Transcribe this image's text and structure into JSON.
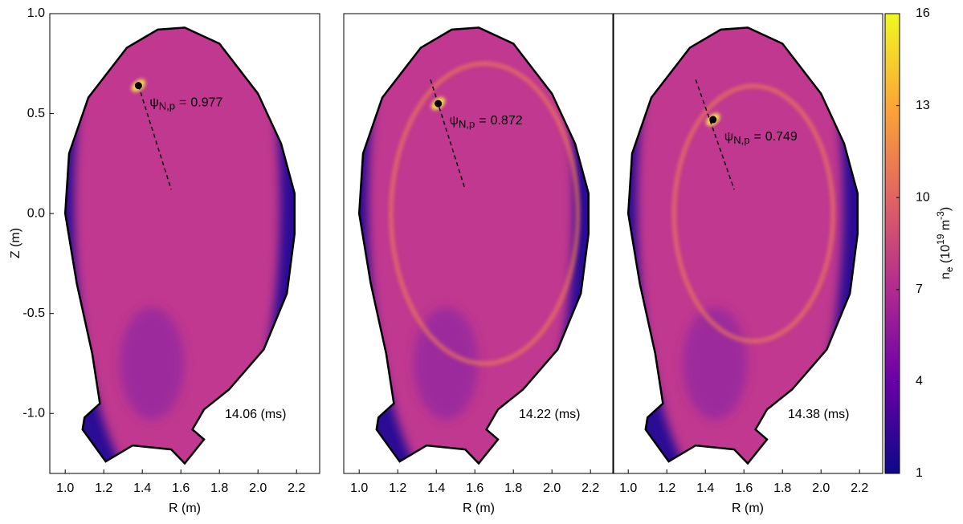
{
  "chart_data": [
    {
      "type": "heatmap",
      "xlabel": "R (m)",
      "ylabel": "Z (m)",
      "xlim": [
        0.92,
        2.32
      ],
      "ylim": [
        -1.3,
        1.0
      ],
      "xticks": [
        {
          "value": 1.0,
          "label": "1.0"
        },
        1.2,
        1.4,
        1.6,
        1.8,
        {
          "value": 2.0,
          "label": "2.0"
        },
        2.2
      ],
      "yticks": [
        {
          "value": -1.0,
          "label": "-1.0"
        },
        -0.5,
        {
          "value": 0.0,
          "label": "0.0"
        },
        0.5,
        {
          "value": 1.0,
          "label": "1.0"
        }
      ],
      "marker": {
        "r": 1.38,
        "z": 0.64
      },
      "chord": {
        "r": [
          1.38,
          1.55
        ],
        "z": [
          0.64,
          0.12
        ]
      },
      "annotation": {
        "symbol": "ψ",
        "subscript": "N,p",
        "relation": "=",
        "value": 0.977
      },
      "time": "14.06 (ms)"
    },
    {
      "type": "heatmap",
      "xlabel": "R (m)",
      "xlim": [
        0.92,
        2.32
      ],
      "ylim": [
        -1.3,
        1.0
      ],
      "xticks": [
        {
          "value": 1.0,
          "label": "1.0"
        },
        1.2,
        1.4,
        1.6,
        1.8,
        {
          "value": 2.0,
          "label": "2.0"
        },
        2.2
      ],
      "marker": {
        "r": 1.41,
        "z": 0.55
      },
      "chord": {
        "r": [
          1.37,
          1.55
        ],
        "z": [
          0.67,
          0.12
        ]
      },
      "annotation": {
        "symbol": "ψ",
        "subscript": "N,p",
        "relation": "=",
        "value": 0.872
      },
      "time": "14.22 (ms)"
    },
    {
      "type": "heatmap",
      "xlabel": "R (m)",
      "xlim": [
        0.92,
        2.32
      ],
      "ylim": [
        -1.3,
        1.0
      ],
      "xticks": [
        {
          "value": 1.0,
          "label": "1.0"
        },
        1.2,
        1.4,
        1.6,
        1.8,
        {
          "value": 2.0,
          "label": "2.0"
        },
        2.2
      ],
      "marker": {
        "r": 1.44,
        "z": 0.47
      },
      "chord": {
        "r": [
          1.35,
          1.55
        ],
        "z": [
          0.67,
          0.12
        ]
      },
      "annotation": {
        "symbol": "ψ",
        "subscript": "N,p",
        "relation": "=",
        "value": 0.749
      },
      "time": "14.38 (ms)"
    }
  ],
  "colorbar": {
    "lim": [
      1,
      16
    ],
    "ticks": [
      1,
      4,
      7,
      10,
      13,
      16
    ],
    "colors": [
      "#0d0887",
      "#6a00a8",
      "#b12a90",
      "#e16462",
      "#fca636",
      "#f0f921"
    ],
    "label": {
      "base": "n",
      "sub": "e",
      "open": " (10",
      "sup": "19",
      "unit": " m",
      "unit_sup": "-3",
      "close": ")"
    }
  }
}
